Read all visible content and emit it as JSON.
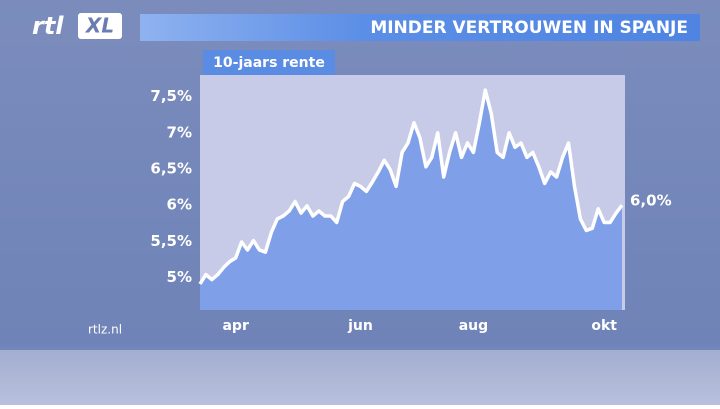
{
  "chart_data": {
    "type": "area",
    "title": "MINDER VERTROUWEN IN SPANJE",
    "subtitle": "10-jaars rente",
    "logo": {
      "rtl": "rtl",
      "xl": "XL"
    },
    "source": "rtlz.nl",
    "color": "#7f9fe8",
    "line_color": "#ffffff",
    "values": [
      4.91,
      5.04,
      4.97,
      5.04,
      5.14,
      5.22,
      5.27,
      5.49,
      5.38,
      5.51,
      5.38,
      5.35,
      5.62,
      5.81,
      5.85,
      5.92,
      6.05,
      5.89,
      5.99,
      5.85,
      5.92,
      5.85,
      5.85,
      5.76,
      6.05,
      6.12,
      6.3,
      6.26,
      6.19,
      6.32,
      6.46,
      6.62,
      6.49,
      6.26,
      6.73,
      6.86,
      7.14,
      6.93,
      6.53,
      6.66,
      7.0,
      6.39,
      6.73,
      7.0,
      6.66,
      6.86,
      6.73,
      7.14,
      7.59,
      7.27,
      6.73,
      6.66,
      7.0,
      6.8,
      6.86,
      6.66,
      6.73,
      6.53,
      6.3,
      6.46,
      6.39,
      6.66,
      6.86,
      6.26,
      5.81,
      5.65,
      5.68,
      5.95,
      5.76,
      5.76,
      5.89,
      6.0
    ],
    "last_value_label": "6,0%",
    "xlim": [
      0,
      71
    ],
    "xticks": [
      {
        "value": 6,
        "label": "apr"
      },
      {
        "value": 27,
        "label": "jun"
      },
      {
        "value": 46,
        "label": "aug"
      },
      {
        "value": 68,
        "label": "okt"
      }
    ],
    "ylim": [
      4.55,
      7.8
    ],
    "yticks": [
      {
        "value": 5,
        "label": "5%"
      },
      {
        "value": 5.5,
        "label": "5,5%"
      },
      {
        "value": 6,
        "label": "6%"
      },
      {
        "value": 6.5,
        "label": "6,5%"
      },
      {
        "value": 7,
        "label": "7%"
      },
      {
        "value": 7.5,
        "label": "7,5%"
      }
    ]
  }
}
